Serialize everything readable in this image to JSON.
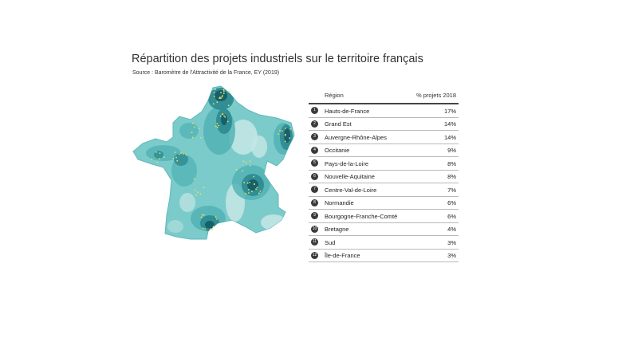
{
  "header": {
    "title": "Répartition des projets industriels sur le territoire français",
    "source": "Source : Baromètre de l'Attractivité de la France, EY (2019)"
  },
  "table": {
    "col_region": "Région",
    "col_pct": "% projets 2018",
    "rows": [
      {
        "num": "1",
        "region": "Hauts-de-France",
        "pct": "17%"
      },
      {
        "num": "2",
        "region": "Grand Est",
        "pct": "14%"
      },
      {
        "num": "3",
        "region": "Auvergne-Rhône-Alpes",
        "pct": "14%"
      },
      {
        "num": "4",
        "region": "Occitanie",
        "pct": "9%"
      },
      {
        "num": "5",
        "region": "Pays-de-la-Loire",
        "pct": "8%"
      },
      {
        "num": "6",
        "region": "Nouvelle-Aquitaine",
        "pct": "8%"
      },
      {
        "num": "7",
        "region": "Centre-Val-de-Loire",
        "pct": "7%"
      },
      {
        "num": "8",
        "region": "Normandie",
        "pct": "6%"
      },
      {
        "num": "9",
        "region": "Bourgogne-Franche-Comté",
        "pct": "6%"
      },
      {
        "num": "10",
        "region": "Bretagne",
        "pct": "4%"
      },
      {
        "num": "11",
        "region": "Sud",
        "pct": "3%"
      },
      {
        "num": "12",
        "region": "Île-de-France",
        "pct": "3%"
      }
    ]
  },
  "map": {
    "colors": {
      "light": "#c2e6e4",
      "base": "#7ccbcb",
      "mid": "#4fb0b3",
      "dark": "#2d8a91",
      "darkest": "#16606c",
      "dots": "#e8e25a"
    }
  }
}
